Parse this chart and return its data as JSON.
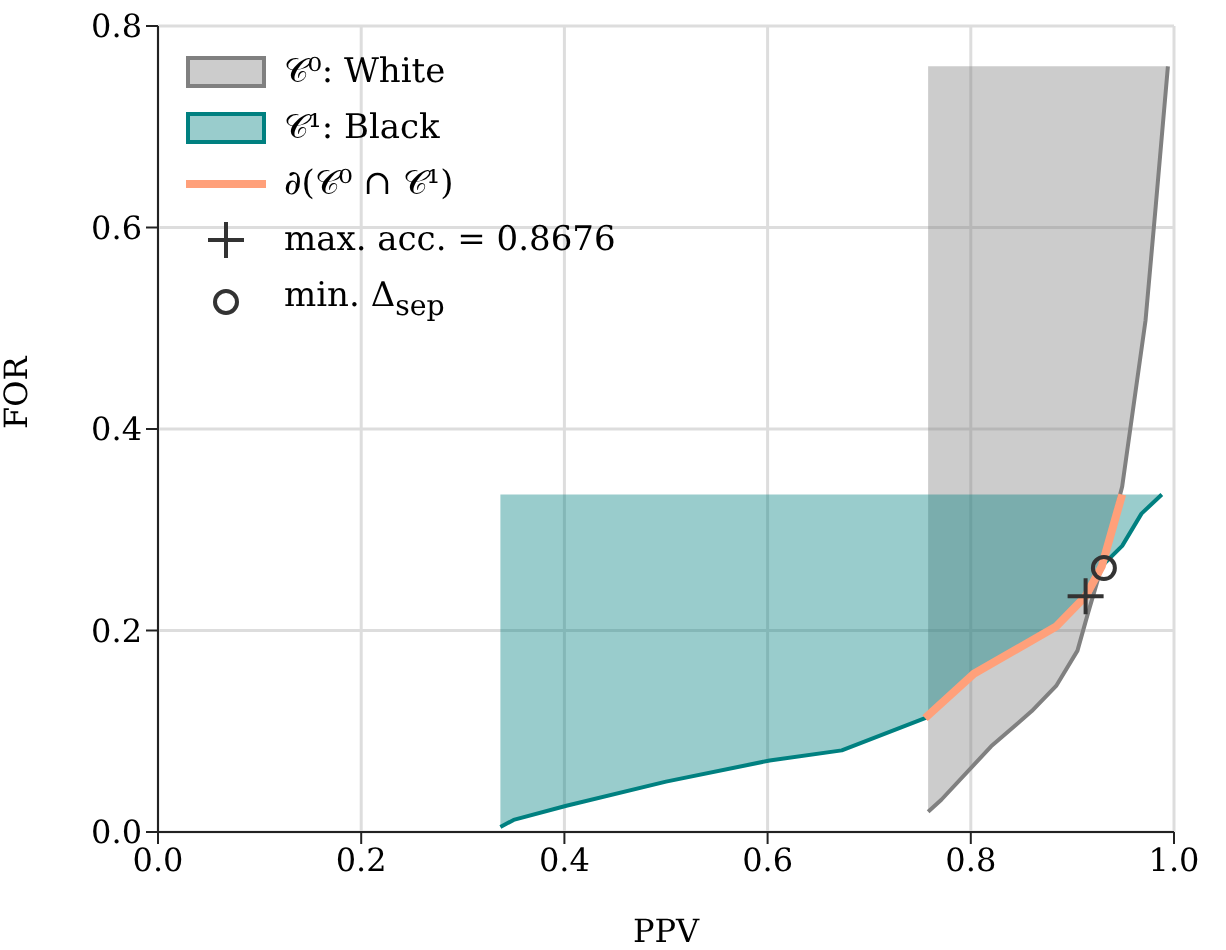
{
  "chart_data": {
    "type": "line",
    "xlabel": "PPV",
    "ylabel": "FOR",
    "xlim": [
      0,
      1
    ],
    "ylim": [
      0,
      0.8
    ],
    "xticks": [
      {
        "value": 0,
        "label": "0.0"
      },
      {
        "value": 0.2,
        "label": "0.2"
      },
      {
        "value": 0.4,
        "label": "0.4"
      },
      {
        "value": 0.6,
        "label": "0.6"
      },
      {
        "value": 0.8,
        "label": "0.8"
      },
      {
        "value": 1,
        "label": "1.0"
      }
    ],
    "yticks": [
      {
        "value": 0,
        "label": "0.0"
      },
      {
        "value": 0.2,
        "label": "0.2"
      },
      {
        "value": 0.4,
        "label": "0.4"
      },
      {
        "value": 0.6,
        "label": "0.6"
      },
      {
        "value": 0.8,
        "label": "0.8"
      }
    ],
    "grid": true,
    "legend": "top left",
    "series": [
      {
        "type": "line",
        "name": "𝒞⁰: White",
        "color": "#808080",
        "x": [
          0.758,
          0.771,
          0.82,
          0.86,
          0.884,
          0.905,
          0.915,
          0.929,
          0.949,
          0.972,
          0.982,
          0.994
        ],
        "values": [
          0.02,
          0.032,
          0.085,
          0.12,
          0.145,
          0.18,
          0.216,
          0.264,
          0.343,
          0.508,
          0.621,
          0.76
        ],
        "lower": [
          0.02,
          0.032,
          0.085,
          0.12,
          0.145,
          0.18,
          0.216,
          0.264,
          0.343,
          0.508,
          0.621,
          0.76
        ],
        "upper": [
          0.76,
          0.76,
          0.76,
          0.76,
          0.76,
          0.76,
          0.76,
          0.76,
          0.76,
          0.76,
          0.76,
          0.76
        ]
      },
      {
        "type": "line",
        "name": "𝒞¹: Black",
        "color": "#008080",
        "x": [
          0.337,
          0.35,
          0.402,
          0.5,
          0.602,
          0.673,
          0.755,
          0.803,
          0.884,
          0.913,
          0.929,
          0.949,
          0.968,
          0.988
        ],
        "values": [
          0.005,
          0.012,
          0.026,
          0.05,
          0.071,
          0.081,
          0.113,
          0.157,
          0.204,
          0.234,
          0.264,
          0.284,
          0.316,
          0.335
        ],
        "lower": [
          0.005,
          0.012,
          0.026,
          0.05,
          0.071,
          0.081,
          0.113,
          0.157,
          0.204,
          0.234,
          0.264,
          0.284,
          0.316,
          0.335
        ],
        "upper": [
          0.335,
          0.335,
          0.335,
          0.335,
          0.335,
          0.335,
          0.335,
          0.335,
          0.335,
          0.335,
          0.335,
          0.335,
          0.335,
          0.335
        ]
      },
      {
        "type": "line",
        "name": "∂(𝒞⁰ ∩ 𝒞¹)",
        "color": "#ffa07a",
        "x": [
          0.755,
          0.803,
          0.884,
          0.913,
          0.929,
          0.949
        ],
        "values": [
          0.113,
          0.157,
          0.204,
          0.234,
          0.264,
          0.335
        ]
      },
      {
        "type": "scatter",
        "name": "max. acc. = 0.8676",
        "color": "#333333",
        "marker": "cross",
        "x": [
          0.913
        ],
        "values": [
          0.234
        ]
      },
      {
        "type": "scatter",
        "name": "min. Δ$_{sep}$",
        "color": "#333333",
        "marker": "circle",
        "x": [
          0.931
        ],
        "values": [
          0.262
        ]
      }
    ]
  }
}
